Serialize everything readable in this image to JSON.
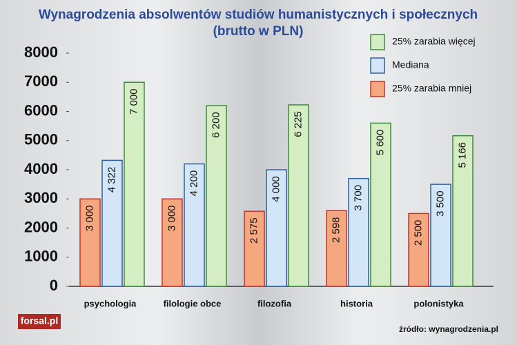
{
  "chart_data": {
    "type": "bar",
    "title": "Wynagrodzenia absolwentów studiów humanistycznych i społecznych",
    "subtitle": "(brutto w PLN)",
    "categories": [
      "psychologia",
      "filologie obce",
      "filozofia",
      "historia",
      "polonistyka"
    ],
    "series": [
      {
        "name": "25% zarabia mniej",
        "color": "#f5a77f",
        "stroke": "#c8312a",
        "values": [
          3000,
          3000,
          2575,
          2598,
          2500
        ],
        "value_labels": [
          "3 000",
          "3 000",
          "2 575",
          "2 598",
          "2 500"
        ]
      },
      {
        "name": "Mediana",
        "color": "#d2e6f7",
        "stroke": "#2f5fa6",
        "values": [
          4322,
          4200,
          4000,
          3700,
          3500
        ],
        "value_labels": [
          "4 322",
          "4 200",
          "4 000",
          "3 700",
          "3 500"
        ]
      },
      {
        "name": "25% zarabia więcej",
        "color": "#d5edc3",
        "stroke": "#3c8b3a",
        "values": [
          7000,
          6200,
          6225,
          5600,
          5166
        ],
        "value_labels": [
          "7 000",
          "6 200",
          "6 225",
          "5 600",
          "5 166"
        ]
      }
    ],
    "ylim": [
      0,
      8000
    ],
    "yticks": [
      0,
      1000,
      2000,
      3000,
      4000,
      5000,
      6000,
      7000,
      8000
    ],
    "legend": "top-right",
    "source": "źródło: wynagrodzenia.pl",
    "logo": "forsal.pl"
  }
}
